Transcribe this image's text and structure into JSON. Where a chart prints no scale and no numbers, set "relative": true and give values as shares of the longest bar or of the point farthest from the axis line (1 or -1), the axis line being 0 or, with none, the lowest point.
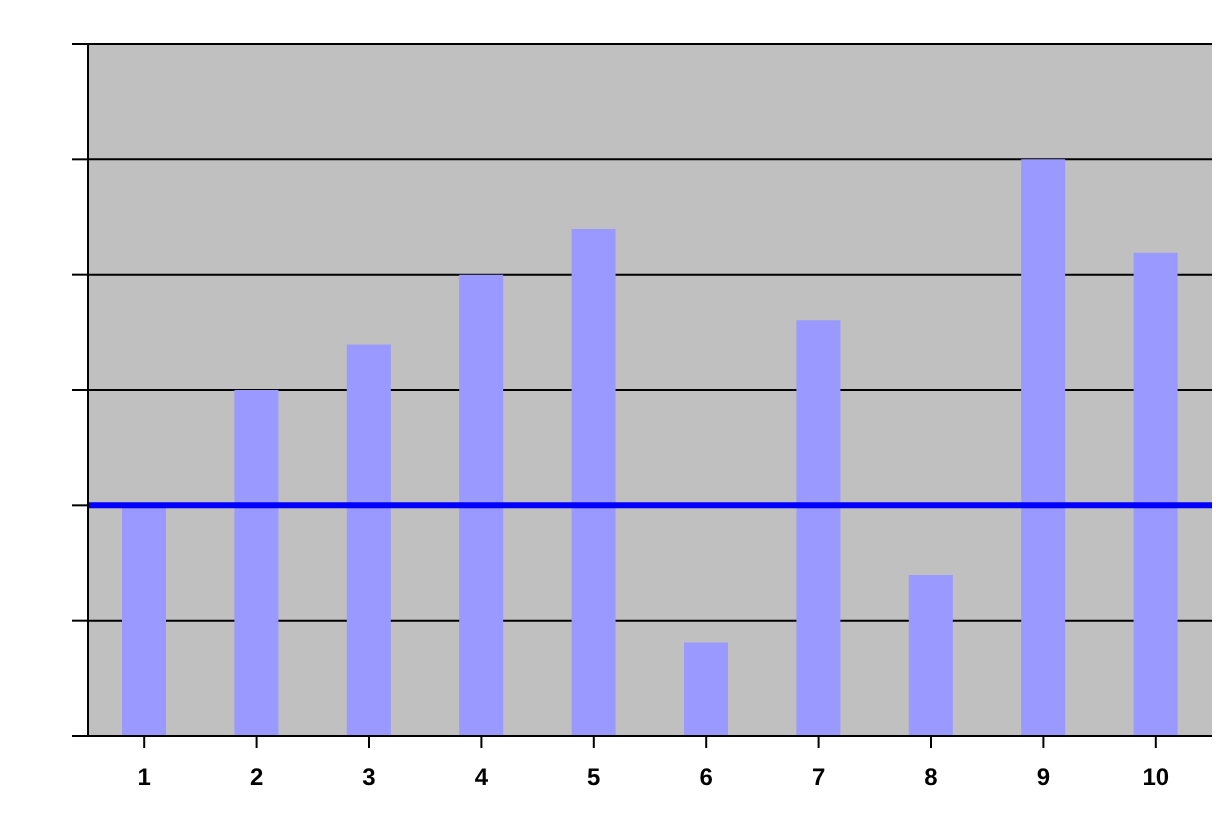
{
  "chart_data": {
    "type": "bar",
    "categories": [
      "1",
      "2",
      "3",
      "4",
      "5",
      "6",
      "7",
      "8",
      "9",
      "10"
    ],
    "values": [
      0.4,
      0.6,
      0.679,
      0.8,
      0.879,
      0.162,
      0.721,
      0.279,
      1,
      0.838
    ],
    "color": "#9999ff",
    "relative": true,
    "grid": "y",
    "ref_lines": [
      {
        "axis": "y",
        "value": 0.4,
        "color": "#0000ff"
      }
    ]
  }
}
